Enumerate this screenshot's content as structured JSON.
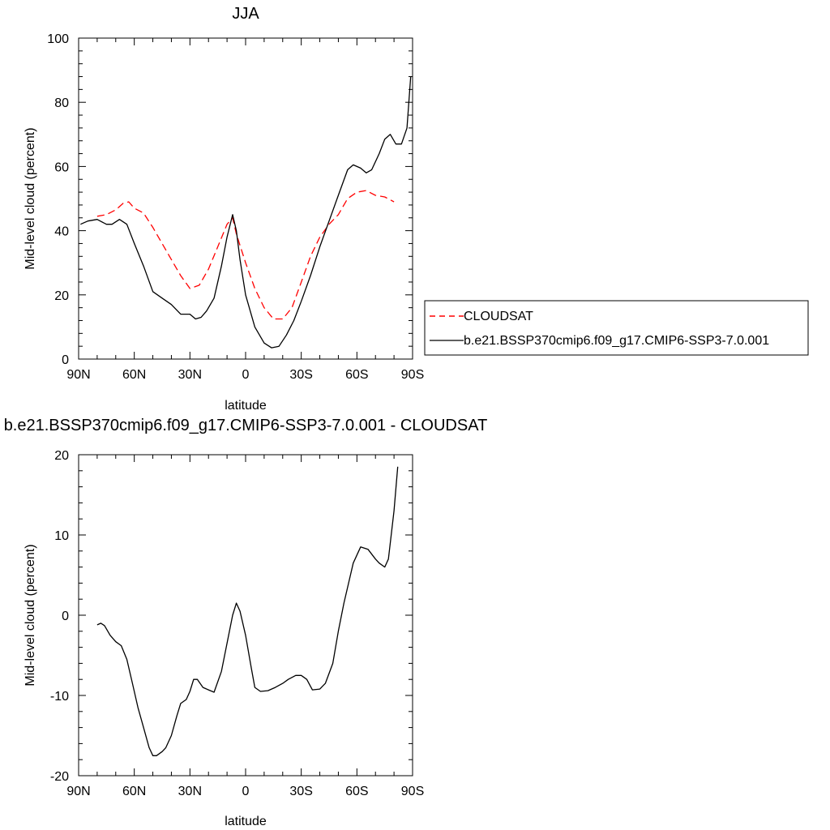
{
  "chart_data": [
    {
      "type": "line",
      "title": "JJA",
      "xlabel": "latitude",
      "ylabel": "Mid-level cloud (percent)",
      "xlim": [
        90,
        -90
      ],
      "ylim": [
        0,
        100
      ],
      "x_ticks": [
        90,
        60,
        30,
        0,
        -30,
        -60,
        -90
      ],
      "x_tick_labels": [
        "90N",
        "60N",
        "30N",
        "0",
        "30S",
        "60S",
        "90S"
      ],
      "y_ticks": [
        0,
        20,
        40,
        60,
        80,
        100
      ],
      "y_tick_labels": [
        "0",
        "20",
        "40",
        "60",
        "80",
        "100"
      ],
      "legend_position": "right",
      "series": [
        {
          "name": "CLOUDSAT",
          "color": "#ff0000",
          "dash": "dashed",
          "x": [
            80,
            75,
            70,
            66,
            63,
            60,
            55,
            50,
            45,
            40,
            35,
            30,
            25,
            20,
            15,
            10,
            7,
            5,
            0,
            -5,
            -10,
            -15,
            -20,
            -25,
            -30,
            -35,
            -40,
            -45,
            -50,
            -55,
            -60,
            -65,
            -70,
            -75,
            -80
          ],
          "y": [
            44.5,
            45,
            46.5,
            48.5,
            49,
            47,
            45.5,
            41,
            36,
            31,
            26,
            22,
            23,
            28,
            35,
            42,
            44,
            39,
            30,
            22,
            16,
            12.5,
            12.5,
            16,
            24,
            32,
            38,
            42,
            45,
            50,
            52,
            52.5,
            51,
            50.5,
            49
          ]
        },
        {
          "name": "b.e21.BSSP370cmip6.f09_g17.CMIP6-SSP3-7.0.001",
          "color": "#000000",
          "dash": "solid",
          "x": [
            89,
            85,
            80,
            75,
            72,
            68,
            64,
            60,
            55,
            50,
            45,
            40,
            35,
            30,
            27,
            24,
            21,
            17,
            13,
            10,
            7,
            5,
            3,
            0,
            -5,
            -10,
            -14,
            -18,
            -22,
            -26,
            -30,
            -35,
            -40,
            -45,
            -50,
            -55,
            -58,
            -62,
            -65,
            -68,
            -72,
            -75,
            -78,
            -81,
            -84,
            -87,
            -89
          ],
          "y": [
            42,
            43,
            43.5,
            42,
            42,
            43.5,
            42,
            36,
            29,
            21,
            19,
            17,
            14,
            14,
            12.5,
            13,
            15,
            19,
            29,
            38,
            45,
            40,
            31,
            20,
            10,
            5,
            3.5,
            4,
            7.5,
            12,
            18,
            26,
            35,
            43,
            51,
            59,
            60.5,
            59.5,
            58,
            59,
            64,
            68.5,
            70,
            67,
            67,
            72,
            88
          ]
        }
      ]
    },
    {
      "type": "line",
      "title": "b.e21.BSSP370cmip6.f09_g17.CMIP6-SSP3-7.0.001 - CLOUDSAT",
      "xlabel": "latitude",
      "ylabel": "Mid-level cloud (percent)",
      "xlim": [
        90,
        -90
      ],
      "ylim": [
        -20,
        20
      ],
      "x_ticks": [
        90,
        60,
        30,
        0,
        -30,
        -60,
        -90
      ],
      "x_tick_labels": [
        "90N",
        "60N",
        "30N",
        "0",
        "30S",
        "60S",
        "90S"
      ],
      "y_ticks": [
        -20,
        -10,
        0,
        10,
        20
      ],
      "y_tick_labels": [
        "-20",
        "-10",
        "0",
        "10",
        "20"
      ],
      "series": [
        {
          "color": "#000000",
          "dash": "solid",
          "x": [
            80,
            78,
            76,
            73,
            70,
            67,
            64,
            61,
            58,
            55,
            52,
            50,
            48,
            45,
            43,
            40,
            37,
            35,
            32,
            30,
            28,
            26,
            23,
            20,
            17,
            13,
            10,
            7,
            5,
            3,
            0,
            -3,
            -5,
            -8,
            -12,
            -16,
            -20,
            -23,
            -27,
            -30,
            -33,
            -36,
            -40,
            -43,
            -47,
            -50,
            -53,
            -56,
            -58,
            -62,
            -66,
            -70,
            -72,
            -75,
            -77,
            -80,
            -82
          ],
          "y": [
            -1.2,
            -1,
            -1.3,
            -2.5,
            -3.3,
            -3.8,
            -5.5,
            -8.5,
            -11.5,
            -14,
            -16.5,
            -17.5,
            -17.5,
            -17,
            -16.5,
            -15,
            -12.5,
            -11,
            -10.5,
            -9.5,
            -8,
            -8,
            -9,
            -9.3,
            -9.6,
            -7,
            -3.5,
            0,
            1.5,
            0.5,
            -2.5,
            -6.5,
            -9,
            -9.5,
            -9.4,
            -9,
            -8.5,
            -8,
            -7.5,
            -7.5,
            -8,
            -9.3,
            -9.2,
            -8.5,
            -6,
            -2,
            1.5,
            4.5,
            6.5,
            8.5,
            8.2,
            7,
            6.5,
            6,
            7,
            13,
            18.5
          ]
        }
      ]
    }
  ]
}
